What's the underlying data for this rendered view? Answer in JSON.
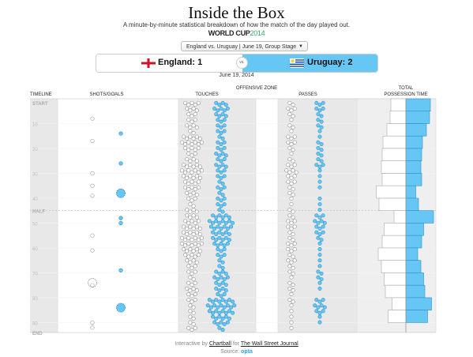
{
  "header": {
    "title": "Inside the Box",
    "subtitle": "A minute-by-minute statistical breakdown of how the match of the day played out.",
    "brand_world": "WORLD CUP",
    "brand_year": "2014",
    "match_select": "England vs. Uruguay | June 19, Group Stage",
    "team_home": "England: 1",
    "team_away": "Uruguay: 2",
    "vs": "vs.",
    "date": "June 19, 2014"
  },
  "columns": {
    "timeline": "TIMELINE",
    "shots": "SHOTS/GOALS",
    "offensive_zone": "OFFENSIVE ZONE",
    "touches": "TOUCHES",
    "passes": "PASSES",
    "possession_1": "TOTAL",
    "possession_2": "POSSESSION TIME"
  },
  "footer": {
    "interactive_by": "Interactive by",
    "chartball": "Chartball",
    "for": "for",
    "wsj": "The Wall Street Journal",
    "source_label": "Source:",
    "source_name": "opta"
  },
  "colors": {
    "england": "#ffffff",
    "uruguay": "#66c7f5",
    "uruguay_stroke": "#2f8fc4",
    "band": "#e8e8e8",
    "flag_red": "#ce1124"
  },
  "icons": {
    "home_flag": "england-flag-icon",
    "away_flag": "uruguay-flag-icon",
    "dropdown": "chevron-down-icon"
  },
  "chart_data": {
    "type": "timeline",
    "time_labels": [
      "START",
      "10",
      "20",
      "30",
      "40",
      "HALF",
      "50",
      "60",
      "70",
      "80",
      "90",
      "END"
    ],
    "time_values": [
      0,
      10,
      20,
      30,
      40,
      45,
      50,
      60,
      70,
      80,
      90,
      94
    ],
    "shots": {
      "england": [
        {
          "minute": 8,
          "goal": false
        },
        {
          "minute": 17,
          "goal": false
        },
        {
          "minute": 30,
          "goal": false
        },
        {
          "minute": 35,
          "goal": false
        },
        {
          "minute": 39,
          "goal": false
        },
        {
          "minute": 55,
          "goal": false
        },
        {
          "minute": 61,
          "goal": false
        },
        {
          "minute": 74,
          "goal": true
        },
        {
          "minute": 75,
          "goal": false
        },
        {
          "minute": 90,
          "goal": false
        },
        {
          "minute": 92,
          "goal": false
        }
      ],
      "uruguay": [
        {
          "minute": 14,
          "goal": false
        },
        {
          "minute": 26,
          "goal": false
        },
        {
          "minute": 38,
          "goal": true
        },
        {
          "minute": 48,
          "goal": false
        },
        {
          "minute": 50,
          "goal": false
        },
        {
          "minute": 69,
          "goal": false
        },
        {
          "minute": 84,
          "goal": true
        }
      ]
    },
    "touches": {
      "england": [
        5,
        4,
        3,
        3,
        4,
        2,
        6,
        7,
        5,
        3,
        4,
        6,
        7,
        6,
        5,
        5,
        4,
        3,
        2,
        4,
        4,
        5,
        6,
        6,
        7,
        7,
        6,
        5,
        4,
        3,
        3,
        2,
        3,
        4,
        3,
        3,
        2,
        2,
        2,
        2,
        3
      ],
      "uruguay": [
        4,
        5,
        4,
        3,
        3,
        3,
        2,
        3,
        3,
        4,
        3,
        4,
        3,
        3,
        2,
        3,
        2,
        3,
        3,
        2,
        6,
        8,
        7,
        6,
        6,
        5,
        3,
        3,
        2,
        2,
        4,
        5,
        4,
        4,
        3,
        8,
        9,
        8,
        6,
        5,
        2
      ]
    },
    "passes": {
      "england": [
        2,
        3,
        2,
        1,
        2,
        1,
        3,
        3,
        2,
        1,
        2,
        3,
        4,
        3,
        3,
        2,
        2,
        1,
        1,
        2,
        2,
        3,
        3,
        2,
        2,
        3,
        3,
        2,
        3,
        2,
        2,
        1,
        2,
        2,
        1,
        2,
        1,
        1,
        1,
        1,
        1
      ],
      "uruguay": [
        3,
        3,
        2,
        2,
        2,
        1,
        1,
        2,
        2,
        2,
        2,
        3,
        1,
        1,
        1,
        1,
        0,
        1,
        1,
        1,
        3,
        4,
        3,
        3,
        2,
        1,
        1,
        1,
        1,
        1,
        2,
        2,
        1,
        1,
        0,
        3,
        4,
        3,
        1,
        1,
        0
      ]
    },
    "possession": [
      {
        "start": 0,
        "end": 5,
        "england": 38,
        "uruguay": 62
      },
      {
        "start": 5,
        "end": 10,
        "england": 40,
        "uruguay": 60
      },
      {
        "start": 10,
        "end": 15,
        "england": 48,
        "uruguay": 52
      },
      {
        "start": 15,
        "end": 20,
        "england": 58,
        "uruguay": 42
      },
      {
        "start": 20,
        "end": 25,
        "england": 60,
        "uruguay": 40
      },
      {
        "start": 25,
        "end": 30,
        "england": 62,
        "uruguay": 38
      },
      {
        "start": 30,
        "end": 35,
        "england": 60,
        "uruguay": 40
      },
      {
        "start": 35,
        "end": 40,
        "england": 75,
        "uruguay": 25
      },
      {
        "start": 40,
        "end": 45,
        "england": 68,
        "uruguay": 32
      },
      {
        "start": 45,
        "end": 50,
        "england": 30,
        "uruguay": 70
      },
      {
        "start": 50,
        "end": 55,
        "england": 55,
        "uruguay": 45
      },
      {
        "start": 55,
        "end": 60,
        "england": 60,
        "uruguay": 40
      },
      {
        "start": 60,
        "end": 65,
        "england": 70,
        "uruguay": 30
      },
      {
        "start": 65,
        "end": 70,
        "england": 62,
        "uruguay": 38
      },
      {
        "start": 70,
        "end": 75,
        "england": 55,
        "uruguay": 45
      },
      {
        "start": 75,
        "end": 80,
        "england": 52,
        "uruguay": 48
      },
      {
        "start": 80,
        "end": 85,
        "england": 35,
        "uruguay": 65
      },
      {
        "start": 85,
        "end": 90,
        "england": 45,
        "uruguay": 55
      }
    ]
  }
}
